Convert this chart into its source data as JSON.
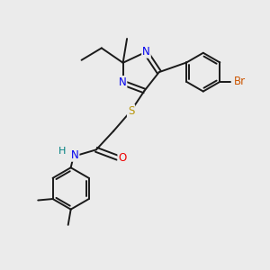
{
  "bg_color": "#ebebeb",
  "bond_color": "#1a1a1a",
  "bond_width": 1.4,
  "atom_colors": {
    "N": "#0000ee",
    "S": "#b8960c",
    "O": "#ee0000",
    "Br": "#cc5500",
    "H": "#008080",
    "C": "#1a1a1a"
  },
  "font_size_atom": 8.5,
  "figsize": [
    3.0,
    3.0
  ],
  "dpi": 100
}
